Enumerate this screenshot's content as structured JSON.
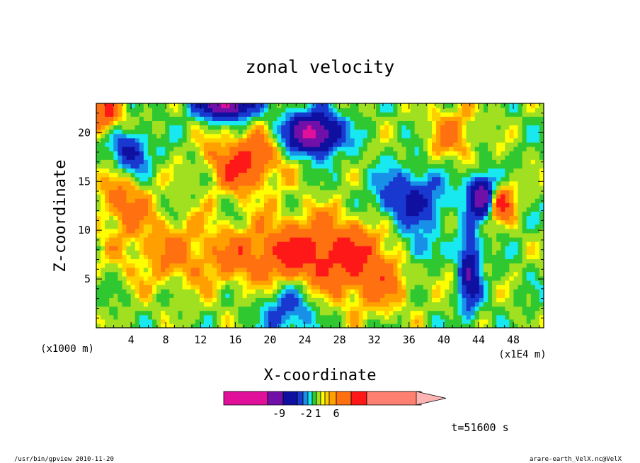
{
  "chart_data": {
    "type": "heatmap",
    "title": "zonal velocity",
    "xlabel": "X-coordinate",
    "ylabel": "Z-coordinate",
    "x_scale_note": "(x1000 m)",
    "x_scale_note_right": "(x1E4 m)",
    "xlim": [
      0,
      51.5
    ],
    "ylim": [
      0,
      23
    ],
    "x_ticks": [
      4,
      8,
      12,
      16,
      20,
      24,
      28,
      32,
      36,
      40,
      44,
      48
    ],
    "y_ticks": [
      5,
      10,
      15,
      20
    ],
    "time_label": "t=51600 s",
    "colorbar": {
      "colors": [
        "#e0109a",
        "#7010a8",
        "#1010a0",
        "#1838d0",
        "#1890e8",
        "#18e8f0",
        "#30c830",
        "#a0e020",
        "#ffff00",
        "#ffd000",
        "#ffa000",
        "#ff7010",
        "#ff1818",
        "#ff8070",
        "#ffb4b4"
      ],
      "tick_labels": [
        "-9",
        "-2",
        "1",
        "6"
      ]
    },
    "field_features": [
      {
        "kind": "negative-core",
        "x": 25,
        "z": 20,
        "level": -8
      },
      {
        "kind": "negative-core",
        "x": 45,
        "z": 14,
        "level": -9
      },
      {
        "kind": "negative-core",
        "x": 15,
        "z": 23,
        "level": -10
      },
      {
        "kind": "positive-core",
        "x": 17,
        "z": 18,
        "level": 8
      },
      {
        "kind": "positive-core",
        "x": 27,
        "z": 9,
        "level": 5
      },
      {
        "kind": "positive-core",
        "x": 46,
        "z": 13,
        "level": 7
      }
    ]
  },
  "footer": {
    "left": "/usr/bin/gpview   2010-11-20",
    "right": "arare-earth_VelX.nc@VelX"
  }
}
